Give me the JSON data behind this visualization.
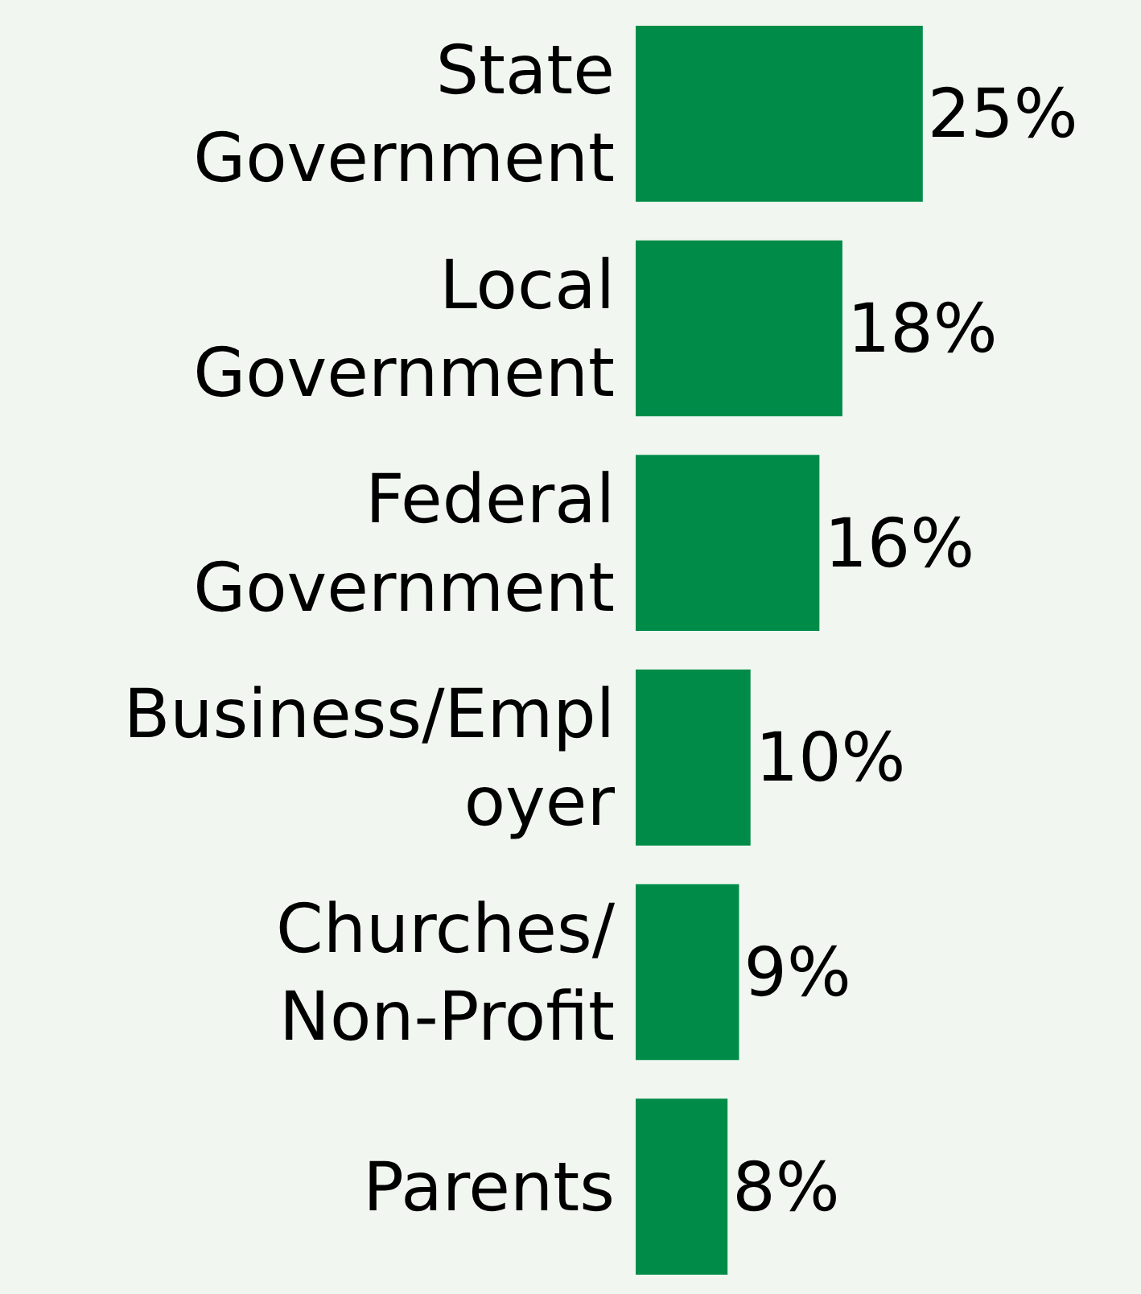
{
  "chart_data": {
    "type": "bar",
    "orientation": "horizontal",
    "categories": [
      "State\nGovernment",
      "Local\nGovernment",
      "Federal\nGovernment",
      "Business/Empl\noyer",
      "Churches/\nNon-Profit",
      "Parents"
    ],
    "values": [
      25,
      18,
      16,
      10,
      9,
      8
    ],
    "value_labels": [
      "25%",
      "18%",
      "16%",
      "10%",
      "9%",
      "8%"
    ],
    "color": "#008c48",
    "xlim": [
      0,
      44
    ],
    "grid": false,
    "legend": false
  }
}
